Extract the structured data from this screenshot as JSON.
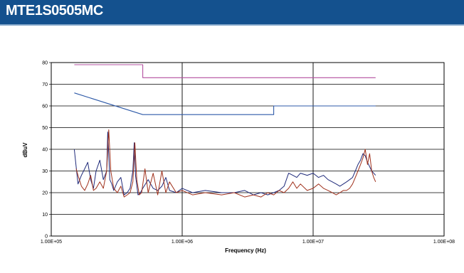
{
  "header": {
    "title": "MTE1S0505MC"
  },
  "colors": {
    "header_bg": "#14518e",
    "limit_qp": "#b24f9f",
    "limit_avg": "#2e5aa8",
    "trace_blue": "#1f2a7a",
    "trace_red": "#a0311c"
  },
  "chart_data": {
    "type": "line",
    "title": "",
    "xlabel": "Frequency (Hz)",
    "ylabel": "dBuV",
    "xscale": "log",
    "xlim": [
      100000,
      100000000
    ],
    "ylim": [
      0,
      80
    ],
    "x_tick_labels": [
      "1.00E+05",
      "1.00E+06",
      "1.00E+07",
      "1.00E+08"
    ],
    "y_tick_labels": [
      "0",
      "10",
      "20",
      "30",
      "40",
      "50",
      "60",
      "70",
      "80"
    ],
    "grid": "major",
    "series": [
      {
        "name": "",
        "color": "#b24f9f",
        "x": [
          150000,
          500000,
          500000,
          30000000
        ],
        "y": [
          79,
          79,
          73,
          73
        ]
      },
      {
        "name": "",
        "color": "#2e5aa8",
        "x": [
          150000,
          500000,
          5000000,
          5000000,
          30000000
        ],
        "y": [
          66,
          56,
          56,
          60,
          60
        ]
      },
      {
        "name": "",
        "color": "#1f2a7a",
        "x": [
          150000,
          155000,
          160000,
          170000,
          180000,
          190000,
          200000,
          210000,
          220000,
          235000,
          250000,
          265000,
          270000,
          280000,
          290000,
          300000,
          320000,
          340000,
          360000,
          380000,
          400000,
          420000,
          430000,
          440000,
          460000,
          480000,
          500000,
          550000,
          600000,
          650000,
          700000,
          750000,
          800000,
          900000,
          1000000,
          1200000,
          1500000,
          2000000,
          2500000,
          3000000,
          3500000,
          4000000,
          4500000,
          5000000,
          5500000,
          6000000,
          6500000,
          7000000,
          7500000,
          8000000,
          9000000,
          10000000,
          11000000,
          12000000,
          13000000,
          14000000,
          15000000,
          16000000,
          17000000,
          18000000,
          19000000,
          20000000,
          21000000,
          22000000,
          23000000,
          24000000,
          25000000,
          26000000,
          27000000,
          28000000,
          29000000,
          30000000
        ],
        "y": [
          40,
          32,
          24,
          28,
          31,
          34,
          26,
          22,
          30,
          35,
          26,
          30,
          48,
          26,
          24,
          21,
          25,
          27,
          19,
          20,
          22,
          30,
          43,
          28,
          19,
          20,
          22,
          26,
          22,
          21,
          23,
          27,
          21,
          20,
          22,
          20,
          21,
          20,
          20,
          21,
          19,
          20,
          19,
          20,
          21,
          23,
          29,
          28,
          27,
          29,
          28,
          29,
          27,
          28,
          26,
          25,
          24,
          23,
          24,
          25,
          26,
          27,
          30,
          33,
          35,
          38,
          37,
          34,
          32,
          30,
          29,
          28
        ]
      },
      {
        "name": "",
        "color": "#a0311c",
        "x": [
          155000,
          160000,
          170000,
          180000,
          190000,
          200000,
          210000,
          220000,
          235000,
          250000,
          265000,
          275000,
          285000,
          300000,
          320000,
          340000,
          360000,
          380000,
          400000,
          420000,
          435000,
          450000,
          470000,
          490000,
          520000,
          550000,
          600000,
          650000,
          700000,
          750000,
          800000,
          900000,
          1000000,
          1200000,
          1500000,
          2000000,
          2500000,
          3000000,
          3500000,
          4000000,
          4500000,
          5000000,
          5500000,
          6000000,
          6500000,
          7000000,
          7500000,
          8000000,
          9000000,
          10000000,
          11000000,
          12000000,
          13000000,
          14000000,
          15000000,
          16000000,
          17000000,
          18000000,
          19000000,
          20000000,
          21000000,
          22000000,
          23000000,
          24000000,
          25000000,
          26000000,
          27000000,
          28000000,
          29000000,
          30000000
        ],
        "y": [
          31,
          28,
          23,
          21,
          24,
          28,
          21,
          22,
          25,
          22,
          30,
          49,
          30,
          22,
          20,
          23,
          18,
          19,
          20,
          25,
          43,
          26,
          19,
          20,
          31,
          20,
          29,
          19,
          30,
          20,
          25,
          20,
          21,
          19,
          20,
          19,
          20,
          18,
          19,
          18,
          20,
          19,
          21,
          20,
          22,
          25,
          22,
          24,
          21,
          22,
          24,
          22,
          21,
          20,
          19,
          20,
          21,
          21,
          22,
          24,
          27,
          30,
          33,
          36,
          40,
          33,
          38,
          30,
          27,
          25
        ]
      }
    ]
  }
}
